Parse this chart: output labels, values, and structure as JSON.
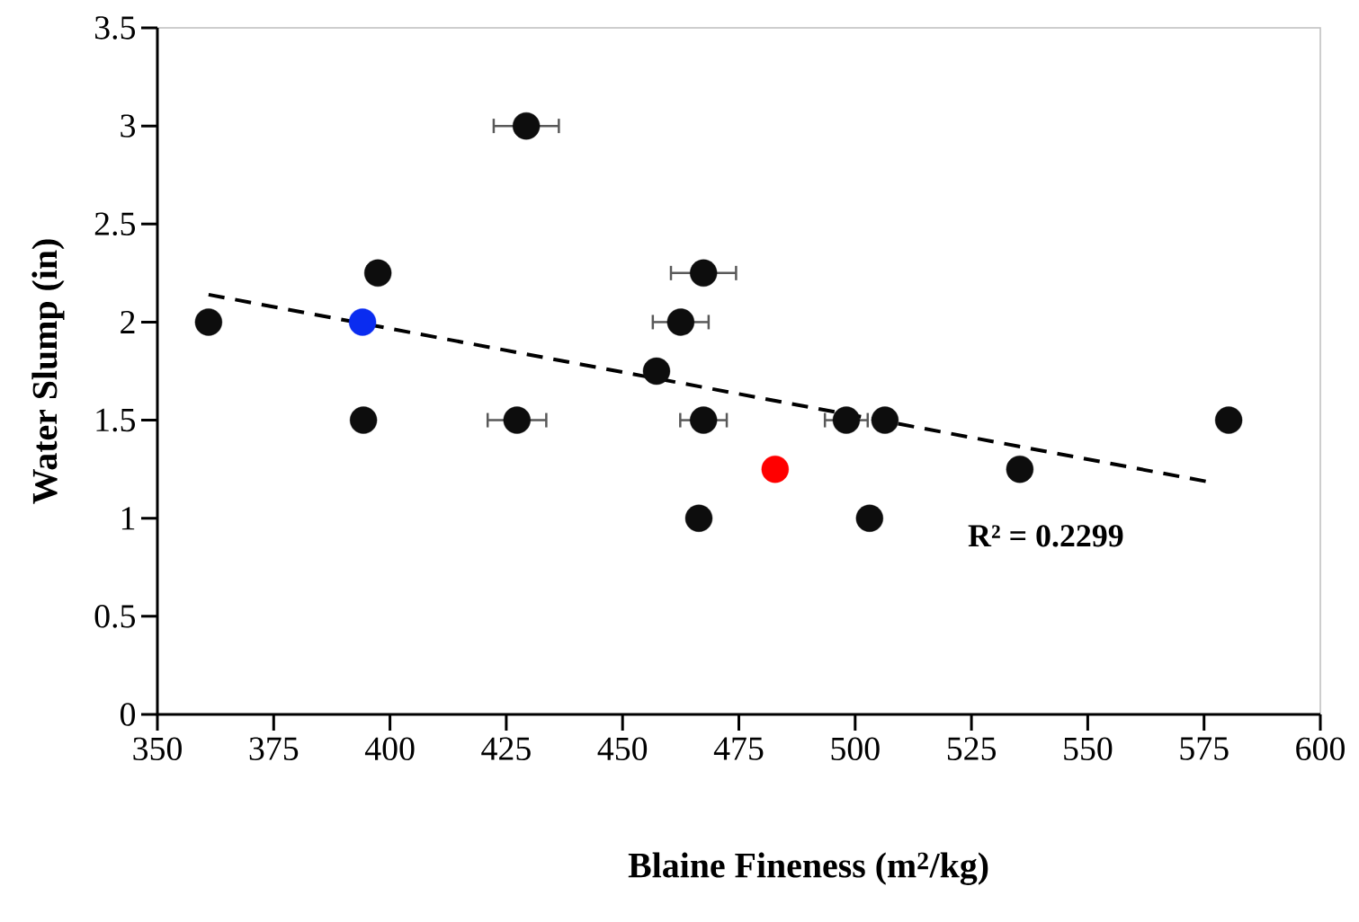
{
  "chart_data": {
    "type": "scatter",
    "xlabel": "Blaine Fineness (m$^{2}$/kg)",
    "ylabel": "Water Slump (in)",
    "xlim": [
      350,
      600
    ],
    "ylim": [
      0,
      3.5
    ],
    "xticks": [
      350,
      375,
      400,
      425,
      450,
      475,
      500,
      525,
      550,
      575,
      600
    ],
    "yticks": [
      0,
      0.5,
      1,
      1.5,
      2,
      2.5,
      3,
      3.5
    ],
    "annotations": [
      "R² = 0.2299"
    ],
    "series": [
      {
        "color": "#0d0d0d",
        "marker": "circle",
        "x": [
          361.0,
          397.4,
          394.3,
          429.3,
          427.3,
          467.4,
          462.5,
          457.3,
          467.4,
          466.4,
          498.1,
          506.4,
          503.1,
          535.4,
          580.3
        ],
        "values": [
          2.0,
          2.25,
          1.5,
          3.0,
          1.5,
          2.25,
          2.0,
          1.75,
          1.5,
          1.0,
          1.5,
          1.5,
          1.0,
          1.25,
          1.5
        ],
        "xerrors": [
          null,
          null,
          null,
          7,
          6.3,
          7,
          6,
          null,
          5,
          null,
          4.6,
          null,
          1.5,
          null,
          null
        ]
      },
      {
        "color": "#0a2cf0",
        "marker": "circle",
        "x": [
          394.1
        ],
        "values": [
          2.0
        ]
      },
      {
        "color": "#ff0000",
        "marker": "circle",
        "x": [
          482.8
        ],
        "values": [
          1.25
        ]
      },
      {
        "type": "line",
        "color": "#000000",
        "line_style": "dashed",
        "marker": "none",
        "x": [
          361.0,
          577.2
        ],
        "values": [
          2.14,
          1.18
        ]
      }
    ]
  }
}
